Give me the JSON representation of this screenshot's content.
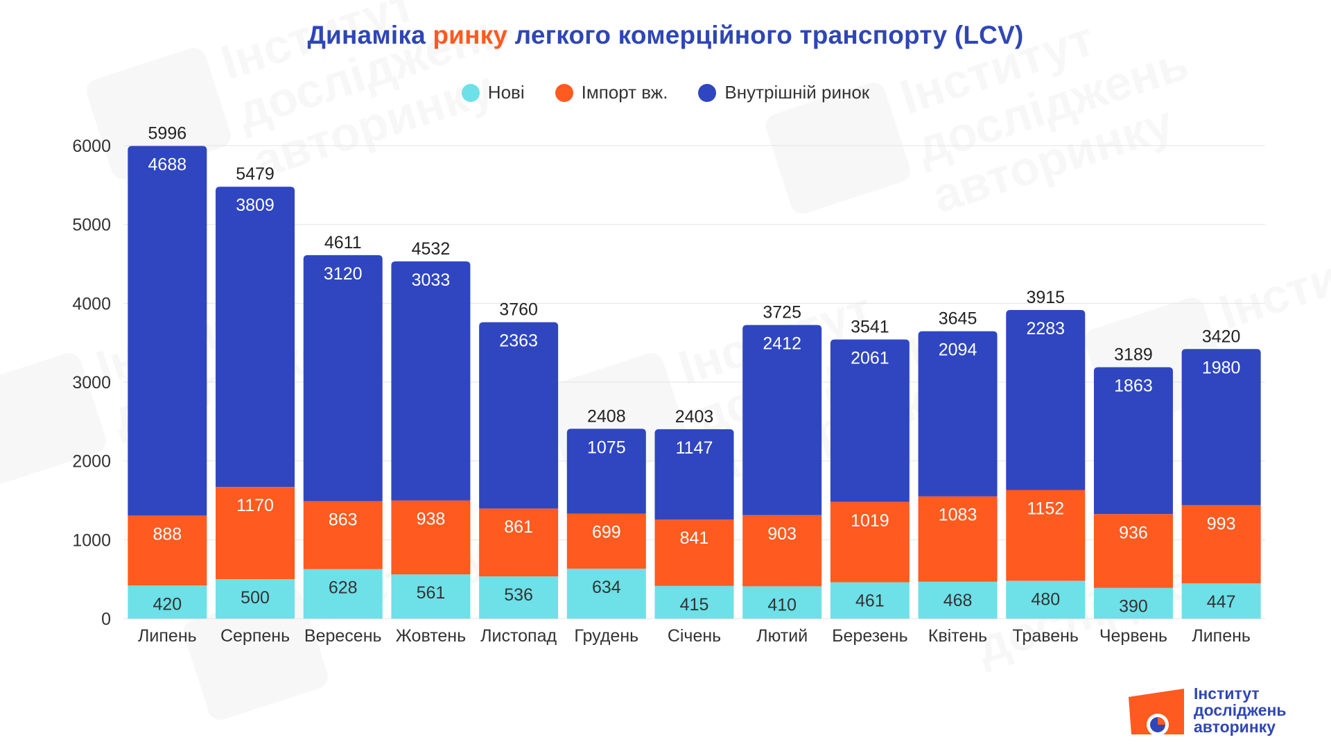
{
  "title": {
    "part1": "Динаміка ",
    "accent": "ринку",
    "part2": " легкого комерційного транспорту (LCV)"
  },
  "legend": [
    {
      "label": "Нові",
      "color": "#6ee0e8"
    },
    {
      "label": "Імпорт вж.",
      "color": "#ff5a1f"
    },
    {
      "label": "Внутрішній ринок",
      "color": "#2f46c0"
    }
  ],
  "logo": {
    "lines": [
      "Інститут",
      "досліджень",
      "авторинку"
    ],
    "color_orange": "#ff5a1f",
    "color_blue": "#2f46b4"
  },
  "chart_data": {
    "type": "bar",
    "stacked": true,
    "categories": [
      "Липень",
      "Серпень",
      "Вересень",
      "Жовтень",
      "Листопад",
      "Грудень",
      "Січень",
      "Лютий",
      "Березень",
      "Квітень",
      "Травень",
      "Червень",
      "Липень"
    ],
    "series": [
      {
        "name": "Нові",
        "color": "#6ee0e8",
        "values": [
          420,
          500,
          628,
          561,
          536,
          634,
          415,
          410,
          461,
          468,
          480,
          390,
          447
        ]
      },
      {
        "name": "Імпорт вж.",
        "color": "#ff5a1f",
        "values": [
          888,
          1170,
          863,
          938,
          861,
          699,
          841,
          903,
          1019,
          1083,
          1152,
          936,
          993
        ]
      },
      {
        "name": "Внутрішній ринок",
        "color": "#2f46c0",
        "values": [
          4688,
          3809,
          3120,
          3033,
          2363,
          1075,
          1147,
          2412,
          2061,
          2094,
          2283,
          1863,
          1980
        ]
      }
    ],
    "totals": [
      5996,
      5479,
      4611,
      4532,
      3760,
      2408,
      2403,
      3725,
      3541,
      3645,
      3915,
      3189,
      3420
    ],
    "ylim": [
      0,
      6000
    ],
    "yticks": [
      0,
      1000,
      2000,
      3000,
      4000,
      5000,
      6000
    ],
    "grid": true,
    "legend_position": "top-center"
  }
}
